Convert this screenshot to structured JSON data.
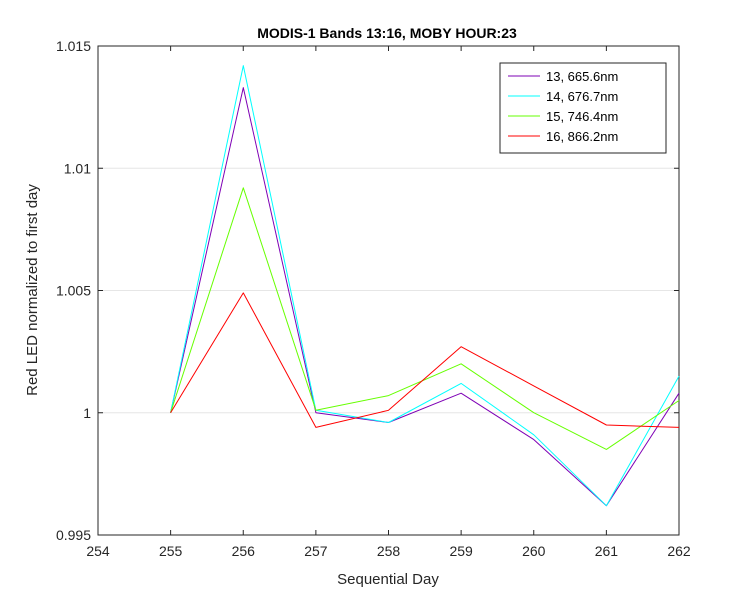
{
  "chart_data": {
    "type": "line",
    "title": "MODIS-1 Bands 13:16, MOBY HOUR:23",
    "xlabel": "Sequential Day",
    "ylabel": "Red LED normalized to first day",
    "xlim": [
      254,
      262
    ],
    "ylim": [
      0.995,
      1.015
    ],
    "xticks": [
      254,
      255,
      256,
      257,
      258,
      259,
      260,
      261,
      262
    ],
    "yticks": [
      0.995,
      1.0,
      1.005,
      1.01,
      1.015
    ],
    "ytick_labels": [
      "0.995",
      "1",
      "1.005",
      "1.01",
      "1.015"
    ],
    "grid": "y-major",
    "legend_position": "top-right",
    "x": [
      255,
      256,
      257,
      258,
      259,
      260,
      261,
      262
    ],
    "series": [
      {
        "name": "13, 665.6nm",
        "color": "#7e00b5",
        "values": [
          1.0,
          1.0133,
          1.0,
          0.9996,
          1.0008,
          0.9989,
          0.9962,
          1.0008
        ]
      },
      {
        "name": "14, 676.7nm",
        "color": "#00ffff",
        "values": [
          1.0,
          1.0142,
          1.0001,
          0.9996,
          1.0012,
          0.9991,
          0.9962,
          1.0015
        ]
      },
      {
        "name": "15, 746.4nm",
        "color": "#66ff00",
        "values": [
          1.0,
          1.0092,
          1.0001,
          1.0007,
          1.002,
          1.0,
          0.9985,
          1.0005
        ]
      },
      {
        "name": "16, 866.2nm",
        "color": "#ff0000",
        "values": [
          1.0,
          1.0049,
          0.9994,
          1.0001,
          1.0027,
          1.0011,
          0.9995,
          0.9994
        ]
      }
    ]
  }
}
